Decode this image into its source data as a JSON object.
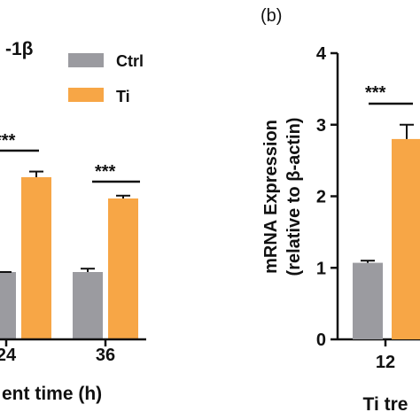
{
  "colors": {
    "ctrl": "#9b9ba0",
    "ti": "#f7a646",
    "axis": "#111111"
  },
  "chart_data": [
    {
      "type": "bar",
      "title": "-1β",
      "xlabel": "ent time (h)",
      "ylabel": "",
      "categories": [
        "24",
        "36"
      ],
      "series": [
        {
          "name": "Ctrl",
          "values": [
            1.0,
            1.0
          ],
          "errors": [
            0.0,
            0.05
          ]
        },
        {
          "name": "Ti",
          "values": [
            2.75,
            2.6
          ],
          "errors": [
            0.04,
            0.02
          ]
        }
      ],
      "y_break": {
        "lower_top": 2.0,
        "upper_start": 2.55
      },
      "significance": [
        "***",
        "***"
      ],
      "legend": "top-right"
    },
    {
      "type": "bar",
      "panel_label": "(b)",
      "title": "",
      "xlabel": "Ti tre",
      "ylabel_lines": [
        "mRNA Expression",
        "(relative to β-actin)"
      ],
      "ylim": [
        0,
        4
      ],
      "yticks": [
        "0",
        "1",
        "2",
        "3",
        "4"
      ],
      "categories": [
        "12"
      ],
      "series": [
        {
          "name": "Ctrl",
          "values": [
            1.07
          ],
          "errors": [
            0.03
          ]
        },
        {
          "name": "Ti",
          "values": [
            2.8
          ],
          "errors": [
            0.2
          ]
        }
      ],
      "significance": [
        "***"
      ]
    }
  ]
}
